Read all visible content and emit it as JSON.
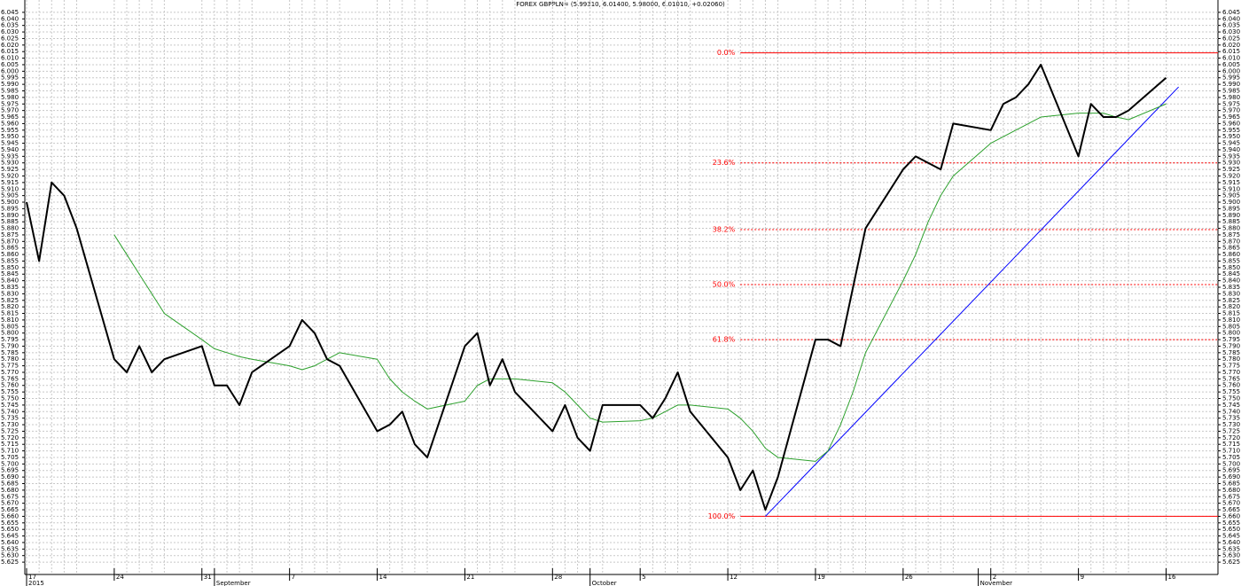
{
  "chart_data": {
    "type": "line",
    "title": "FOREX GBPPLN= (5.99310, 6.01400, 5.98000, 6.01010, +0.02060)",
    "x": [
      "2015-08-17",
      "2015-08-18",
      "2015-08-19",
      "2015-08-20",
      "2015-08-21",
      "2015-08-24",
      "2015-08-25",
      "2015-08-26",
      "2015-08-27",
      "2015-08-28",
      "2015-08-31",
      "2015-09-01",
      "2015-09-02",
      "2015-09-03",
      "2015-09-04",
      "2015-09-07",
      "2015-09-08",
      "2015-09-09",
      "2015-09-10",
      "2015-09-11",
      "2015-09-14",
      "2015-09-15",
      "2015-09-16",
      "2015-09-17",
      "2015-09-18",
      "2015-09-21",
      "2015-09-22",
      "2015-09-23",
      "2015-09-24",
      "2015-09-25",
      "2015-09-28",
      "2015-09-29",
      "2015-09-30",
      "2015-10-01",
      "2015-10-02",
      "2015-10-05",
      "2015-10-06",
      "2015-10-07",
      "2015-10-08",
      "2015-10-09",
      "2015-10-12",
      "2015-10-13",
      "2015-10-14",
      "2015-10-15",
      "2015-10-16",
      "2015-10-19",
      "2015-10-20",
      "2015-10-21",
      "2015-10-22",
      "2015-10-23",
      "2015-10-26",
      "2015-10-27",
      "2015-10-28",
      "2015-10-29",
      "2015-10-30",
      "2015-11-02",
      "2015-11-03",
      "2015-11-04",
      "2015-11-05",
      "2015-11-06",
      "2015-11-09",
      "2015-11-10",
      "2015-11-11",
      "2015-11-12",
      "2015-11-13",
      "2015-11-16"
    ],
    "series": [
      {
        "color": "#000000",
        "values": [
          5.9,
          5.855,
          5.915,
          5.905,
          5.88,
          5.78,
          5.77,
          5.79,
          5.77,
          5.78,
          5.79,
          5.76,
          5.76,
          5.745,
          5.77,
          5.79,
          5.81,
          5.8,
          5.78,
          5.775,
          5.725,
          5.73,
          5.74,
          5.715,
          5.705,
          5.79,
          5.8,
          5.76,
          5.78,
          5.755,
          5.725,
          5.745,
          5.72,
          5.71,
          5.745,
          5.745,
          5.735,
          5.75,
          5.77,
          5.74,
          5.705,
          5.68,
          5.695,
          5.665,
          5.69,
          5.795,
          5.795,
          5.79,
          5.835,
          5.88,
          5.925,
          5.935,
          5.93,
          5.925,
          5.96,
          5.955,
          5.975,
          5.98,
          5.99,
          6.005,
          5.935,
          5.975,
          5.965,
          5.965,
          5.97,
          5.995
        ]
      },
      {
        "color": "#2ca02c",
        "values": [
          null,
          null,
          null,
          null,
          null,
          5.875,
          5.86,
          5.845,
          5.83,
          5.815,
          5.795,
          5.788,
          5.785,
          5.782,
          5.78,
          5.775,
          5.772,
          5.775,
          5.78,
          5.785,
          5.78,
          5.765,
          5.755,
          5.748,
          5.742,
          5.748,
          5.76,
          5.765,
          5.765,
          5.765,
          5.762,
          5.755,
          5.745,
          5.735,
          5.732,
          5.733,
          5.735,
          5.74,
          5.745,
          5.745,
          5.742,
          5.735,
          5.725,
          5.712,
          5.705,
          5.702,
          5.71,
          5.73,
          5.755,
          5.785,
          5.84,
          5.86,
          5.885,
          5.905,
          5.92,
          5.945,
          5.95,
          5.955,
          5.96,
          5.965,
          5.968,
          5.968,
          5.968,
          5.965,
          5.963,
          5.975
        ]
      }
    ],
    "trendline": {
      "color": "#0000ff",
      "x": [
        "2015-10-15",
        "2015-11-17"
      ],
      "values": [
        5.66,
        5.988
      ]
    },
    "fib_start": "2015-10-13",
    "fib_color": "#ff0000",
    "fib_levels": [
      {
        "label": "0.0%",
        "value": 6.014,
        "dashed": false
      },
      {
        "label": "23.6%",
        "value": 5.93,
        "dashed": true
      },
      {
        "label": "38.2%",
        "value": 5.879,
        "dashed": true
      },
      {
        "label": "50.0%",
        "value": 5.837,
        "dashed": true
      },
      {
        "label": "61.8%",
        "value": 5.795,
        "dashed": true
      },
      {
        "label": "100.0%",
        "value": 5.66,
        "dashed": false
      }
    ],
    "xlim": [
      "2015-08-17",
      "2015-11-20"
    ],
    "xticks": [
      {
        "value": "2015-08-17",
        "label": "17"
      },
      {
        "value": "2015-08-24",
        "label": "24"
      },
      {
        "value": "2015-08-31",
        "label": "31"
      },
      {
        "value": "2015-09-07",
        "label": "7"
      },
      {
        "value": "2015-09-14",
        "label": "14"
      },
      {
        "value": "2015-09-21",
        "label": "21"
      },
      {
        "value": "2015-09-28",
        "label": "28"
      },
      {
        "value": "2015-10-05",
        "label": "5"
      },
      {
        "value": "2015-10-12",
        "label": "12"
      },
      {
        "value": "2015-10-19",
        "label": "19"
      },
      {
        "value": "2015-10-26",
        "label": "26"
      },
      {
        "value": "2015-11-02",
        "label": "2"
      },
      {
        "value": "2015-11-09",
        "label": "9"
      },
      {
        "value": "2015-11-16",
        "label": "16"
      }
    ],
    "xticks_major": [
      {
        "value": "2015-08-17",
        "label": "2015"
      },
      {
        "value": "2015-09-01",
        "label": "September"
      },
      {
        "value": "2015-10-01",
        "label": "October"
      },
      {
        "value": "2015-11-01",
        "label": "November"
      }
    ],
    "ylim": [
      5.621,
      6.049
    ],
    "yticks": [
      5.625,
      {
        "value": 5.63,
        "label": "5.630"
      },
      5.635,
      {
        "value": 5.64,
        "label": "5.640"
      },
      5.645,
      {
        "value": 5.65,
        "label": "5.650"
      },
      5.655,
      {
        "value": 5.66,
        "label": "5.660"
      },
      5.665,
      {
        "value": 5.67,
        "label": "5.670"
      },
      5.675,
      {
        "value": 5.68,
        "label": "5.680"
      },
      5.685,
      {
        "value": 5.69,
        "label": "5.690"
      },
      5.695,
      {
        "value": 5.7,
        "label": "5.700"
      },
      5.705,
      {
        "value": 5.71,
        "label": "5.710"
      },
      5.715,
      {
        "value": 5.72,
        "label": "5.720"
      },
      5.725,
      {
        "value": 5.73,
        "label": "5.730"
      },
      5.735,
      {
        "value": 5.74,
        "label": "5.740"
      },
      5.745,
      {
        "value": 5.75,
        "label": "5.750"
      },
      5.755,
      {
        "value": 5.76,
        "label": "5.760"
      },
      5.765,
      {
        "value": 5.77,
        "label": "5.770"
      },
      5.775,
      {
        "value": 5.78,
        "label": "5.780"
      },
      5.785,
      {
        "value": 5.79,
        "label": "5.790"
      },
      5.795,
      {
        "value": 5.8,
        "label": "5.800"
      },
      5.805,
      {
        "value": 5.81,
        "label": "5.810"
      },
      5.815,
      {
        "value": 5.82,
        "label": "5.820"
      },
      5.825,
      {
        "value": 5.83,
        "label": "5.830"
      },
      5.835,
      {
        "value": 5.84,
        "label": "5.840"
      },
      5.845,
      {
        "value": 5.85,
        "label": "5.850"
      },
      5.855,
      {
        "value": 5.86,
        "label": "5.860"
      },
      5.865,
      {
        "value": 5.87,
        "label": "5.870"
      },
      5.875,
      {
        "value": 5.88,
        "label": "5.880"
      },
      5.885,
      {
        "value": 5.89,
        "label": "5.890"
      },
      5.895,
      {
        "value": 5.9,
        "label": "5.900"
      },
      5.905,
      {
        "value": 5.91,
        "label": "5.910"
      },
      5.915,
      {
        "value": 5.92,
        "label": "5.920"
      },
      5.925,
      {
        "value": 5.93,
        "label": "5.930"
      },
      5.935,
      {
        "value": 5.94,
        "label": "5.940"
      },
      5.945,
      {
        "value": 5.95,
        "label": "5.950"
      },
      5.955,
      {
        "value": 5.96,
        "label": "5.960"
      },
      5.965,
      {
        "value": 5.97,
        "label": "5.970"
      },
      5.975,
      {
        "value": 5.98,
        "label": "5.980"
      },
      5.985,
      {
        "value": 5.99,
        "label": "5.990"
      },
      5.995,
      {
        "value": 6,
        "label": "6.000"
      },
      6.005,
      {
        "value": 6.01,
        "label": "6.010"
      },
      6.015,
      {
        "value": 6.02,
        "label": "6.020"
      },
      6.025,
      {
        "value": 6.03,
        "label": "6.030"
      },
      6.035,
      {
        "value": 6.04,
        "label": "6.040"
      },
      6.045
    ],
    "grid": true
  }
}
